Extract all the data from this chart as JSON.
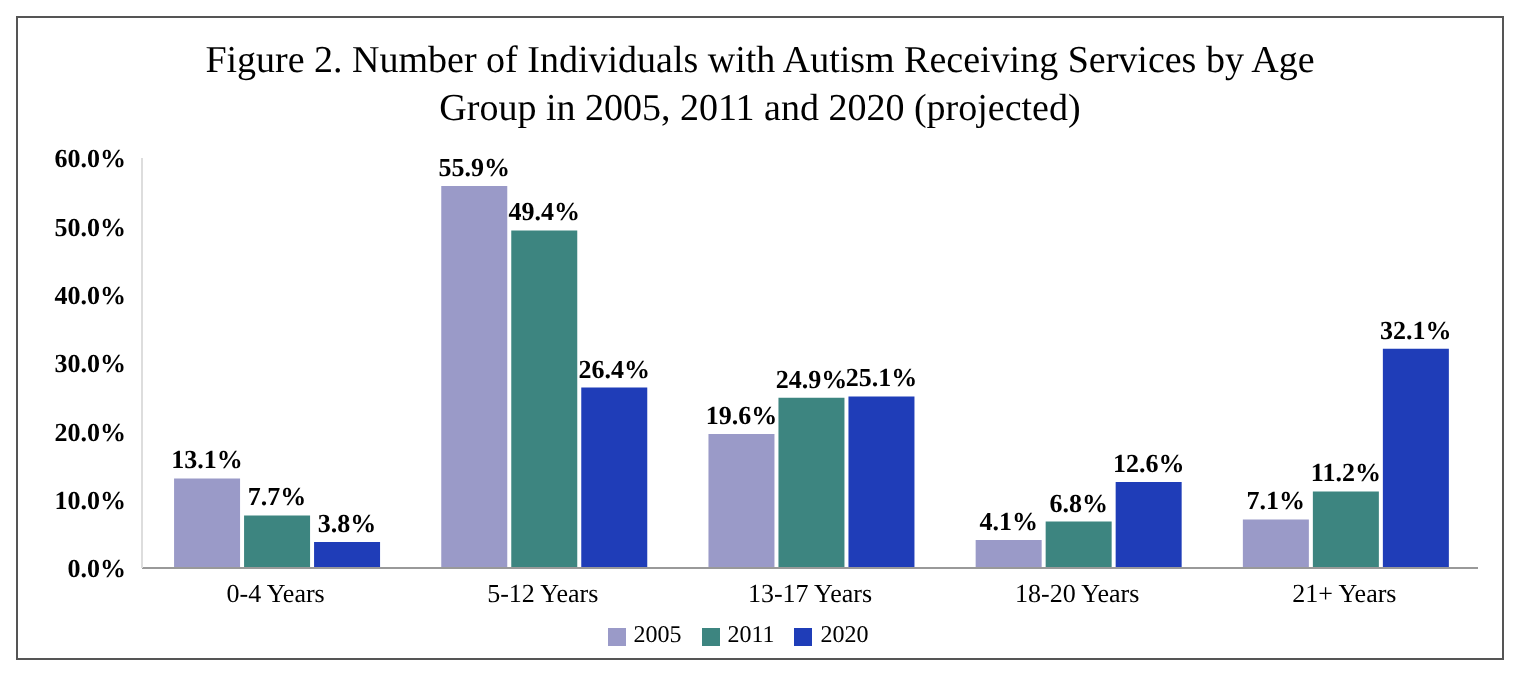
{
  "chart_data": {
    "type": "bar",
    "title": "Figure 2. Number of Individuals with Autism Receiving Services by Age Group in 2005, 2011 and 2020 (projected)",
    "categories": [
      "0-4 Years",
      "5-12 Years",
      "13-17 Years",
      "18-20 Years",
      "21+ Years"
    ],
    "series": [
      {
        "name": "2005",
        "color": "#9a9ac8",
        "values": [
          13.1,
          55.9,
          19.6,
          4.1,
          7.1
        ],
        "value_labels": [
          "13.1%",
          "55.9%",
          "19.6%",
          "4.1%",
          "7.1%"
        ]
      },
      {
        "name": "2011",
        "color": "#3d8580",
        "values": [
          7.7,
          49.4,
          24.9,
          6.8,
          11.2
        ],
        "value_labels": [
          "7.7%",
          "49.4%",
          "24.9%",
          "6.8%",
          "11.2%"
        ]
      },
      {
        "name": "2020",
        "color": "#1f3db8",
        "values": [
          3.8,
          26.4,
          25.1,
          12.6,
          32.1
        ],
        "value_labels": [
          "3.8%",
          "26.4%",
          "25.1%",
          "12.6%",
          "32.1%"
        ]
      }
    ],
    "ylim": [
      0,
      60
    ],
    "yticks": [
      {
        "value": 0,
        "label": "0.0%"
      },
      {
        "value": 10,
        "label": "10.0%"
      },
      {
        "value": 20,
        "label": "20.0%"
      },
      {
        "value": 30,
        "label": "30.0%"
      },
      {
        "value": 40,
        "label": "40.0%"
      },
      {
        "value": 50,
        "label": "50.0%"
      },
      {
        "value": 60,
        "label": "60.0%"
      }
    ],
    "grid": false,
    "legend": "bottom"
  }
}
